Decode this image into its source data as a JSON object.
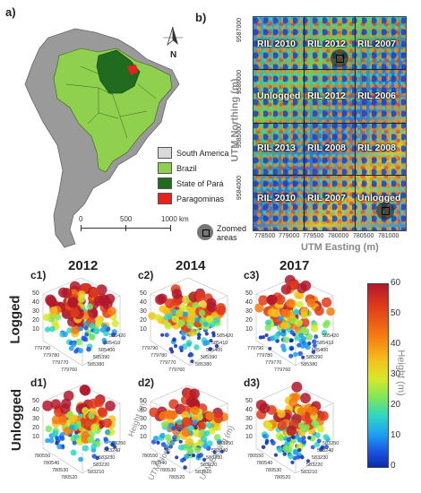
{
  "panel_a": {
    "label": "a)",
    "legend": [
      {
        "label": "South America",
        "color": "#d9d9d9"
      },
      {
        "label": "Brazil",
        "color": "#8fd14f"
      },
      {
        "label": "State of Pará",
        "color": "#1f6b1f"
      },
      {
        "label": "Paragominas",
        "color": "#e8211a"
      }
    ],
    "scale": {
      "t0": "0",
      "t1": "500",
      "t2": "1000 km"
    },
    "north": "N"
  },
  "panel_b": {
    "label": "b)",
    "blocks": [
      "RIL 2010",
      "RIL 2012",
      "RIL 2007",
      "Unlogged",
      "RIL 2012",
      "RIL 2006",
      "RIL 2013",
      "RIL 2008",
      "RIL 2008",
      "RIL 2010",
      "RIL 2007",
      "Unlogged"
    ],
    "northing_ticks": [
      "9587000",
      "9586000",
      "9585000",
      "9584000"
    ],
    "easting_ticks": [
      "778500",
      "779000",
      "779500",
      "780000",
      "780500",
      "781000"
    ],
    "y_title": "UTM Northing (m)",
    "x_title": "UTM Easting (m)",
    "zoomed_label": "Zoomed areas"
  },
  "years": [
    "2012",
    "2014",
    "2017"
  ],
  "row_labels": {
    "logged": "Logged",
    "unlogged": "Unlogged"
  },
  "panel_labels": {
    "c": [
      "c1)",
      "c2)",
      "c3)"
    ],
    "d": [
      "d1)",
      "d2)",
      "d3)"
    ]
  },
  "plot_ticks": {
    "z": [
      "50",
      "40",
      "30",
      "20",
      "10"
    ],
    "logged_e": [
      "585420",
      "585410",
      "585400",
      "585390",
      "585380"
    ],
    "logged_n": [
      "779790",
      "779780",
      "779770",
      "779760"
    ],
    "unlogged_e": [
      "583250",
      "583240",
      "583230",
      "583220",
      "583210"
    ],
    "unlogged_n": [
      "780550",
      "780540",
      "780530",
      "780520"
    ]
  },
  "axis_titles": {
    "height": "Height (m)",
    "northing": "UTM Northing(m)",
    "easting": "UTM Easting (m)"
  },
  "colorbar": {
    "title": "Height (m)",
    "ticks": [
      "60",
      "50",
      "40",
      "30",
      "20",
      "10",
      "0"
    ],
    "max": 60,
    "min": 0,
    "colors": [
      "#b2182b",
      "#e03a1a",
      "#f57a10",
      "#f4c21c",
      "#d5e92c",
      "#7ee65a",
      "#2fd6c4",
      "#1ea0f0",
      "#1a52e0",
      "#0b2aa8"
    ]
  }
}
